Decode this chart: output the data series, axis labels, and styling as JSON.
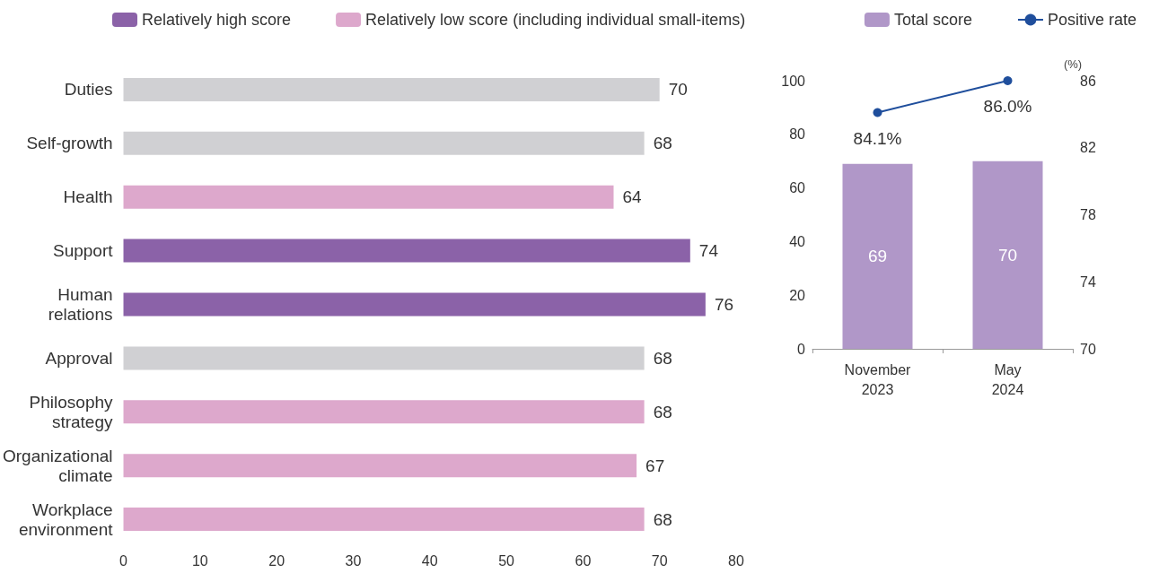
{
  "chart_data": [
    {
      "type": "bar",
      "orientation": "horizontal",
      "categories": [
        "Duties",
        "Self-growth",
        "Health",
        "Support",
        "Human\nrelations",
        "Approval",
        "Philosophy\nstrategy",
        "Organizational\nclimate",
        "Workplace\nenvironment"
      ],
      "series": [
        {
          "color": "#d0d0d3",
          "values": [
            70,
            68,
            null,
            null,
            null,
            68,
            null,
            null,
            null
          ]
        },
        {
          "name": "Relatively high score",
          "color": "#8b62a8",
          "values": [
            null,
            null,
            null,
            74,
            76,
            null,
            null,
            null,
            null
          ]
        },
        {
          "name": "Relatively low score (including individual small-items)",
          "color": "#dda8cc",
          "values": [
            null,
            null,
            64,
            null,
            null,
            null,
            68,
            67,
            68
          ]
        }
      ],
      "xlim": [
        0,
        80
      ],
      "xticks": [
        0,
        10,
        20,
        30,
        40,
        50,
        60,
        70,
        80
      ],
      "data_labels": true,
      "grid": false,
      "legend": "top left"
    },
    {
      "type": "bar",
      "categories": [
        "November\n2023",
        "May\n2024"
      ],
      "y2label": "(%)",
      "series": [
        {
          "name": "Total score",
          "color": "#b097c8",
          "values": [
            69,
            70
          ],
          "value_labels": [
            "69",
            "70"
          ]
        },
        {
          "name": "Positive rate",
          "type": "line",
          "axis": "y2",
          "color": "#1f4e9c",
          "values": [
            84.1,
            86.0
          ],
          "value_labels": [
            "84.1%",
            "86.0%"
          ]
        }
      ],
      "ylim": [
        0,
        100
      ],
      "yticks": [
        0,
        20,
        40,
        60,
        80,
        100
      ],
      "y2lim": [
        70,
        86
      ],
      "y2ticks": [
        70,
        74,
        78,
        82,
        86
      ],
      "marker": "circle",
      "grid": false,
      "legend": "top right"
    }
  ]
}
